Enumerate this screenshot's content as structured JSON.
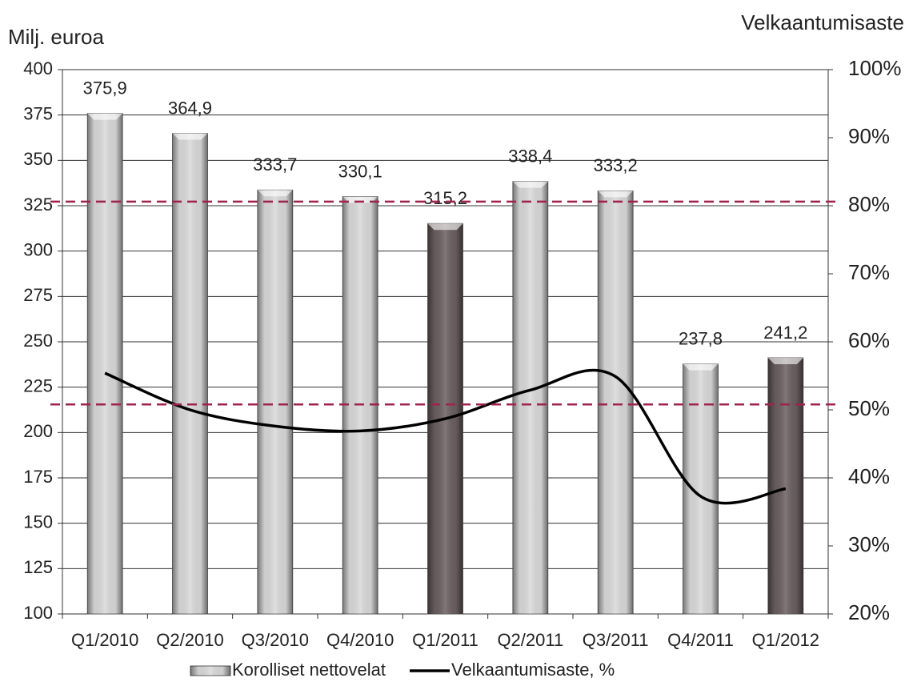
{
  "chart_data": {
    "type": "bar_line",
    "y_axis_label": "Milj. euroa",
    "y2_axis_label": "Velkaantumisaste",
    "categories": [
      "Q1/2010",
      "Q2/2010",
      "Q3/2010",
      "Q4/2010",
      "Q1/2011",
      "Q2/2011",
      "Q3/2011",
      "Q4/2011",
      "Q1/2012"
    ],
    "series": [
      {
        "name": "Korolliset nettovelat",
        "type": "bar",
        "color": "#d9d9d9",
        "colors": [
          "#d9d9d9",
          "#d9d9d9",
          "#d9d9d9",
          "#d9d9d9",
          "#6b5f60",
          "#d9d9d9",
          "#d9d9d9",
          "#d9d9d9",
          "#6b5f60"
        ],
        "values": [
          375.9,
          364.9,
          333.7,
          330.1,
          315.2,
          338.4,
          333.2,
          237.8,
          241.2
        ],
        "value_labels": [
          "375,9",
          "364,9",
          "333,7",
          "330,1",
          "315,2",
          "338,4",
          "333,2",
          "237,8",
          "241,2"
        ]
      },
      {
        "name": "Velkaantumisaste, %",
        "type": "line",
        "axis": "y2",
        "color": "#000000",
        "values": [
          55.4,
          50.0,
          47.6,
          46.9,
          48.7,
          52.9,
          54.9,
          37.3,
          38.4
        ]
      }
    ],
    "ylim": [
      100,
      400
    ],
    "yticks": [
      100,
      125,
      150,
      175,
      200,
      225,
      250,
      275,
      300,
      325,
      350,
      375,
      400
    ],
    "y2lim": [
      20,
      100
    ],
    "y2ticks": [
      {
        "value": 20,
        "label": "20%"
      },
      {
        "value": 30,
        "label": "30%"
      },
      {
        "value": 40,
        "label": "40%"
      },
      {
        "value": 50,
        "label": "50%"
      },
      {
        "value": 60,
        "label": "60%"
      },
      {
        "value": 70,
        "label": "70%"
      },
      {
        "value": 80,
        "label": "80%"
      },
      {
        "value": 90,
        "label": "90%"
      },
      {
        "value": 100,
        "label": "100%"
      }
    ],
    "y2_reference_lines": [
      80.6,
      50.8
    ],
    "reference_color": "#a0224e",
    "grid": true
  }
}
